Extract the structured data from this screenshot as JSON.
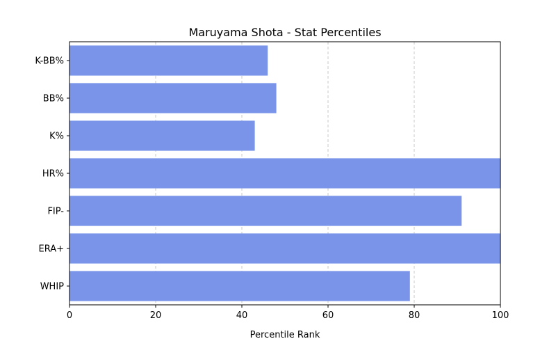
{
  "chart_data": {
    "type": "bar",
    "orientation": "horizontal",
    "title": "Maruyama Shota - Stat Percentiles",
    "xlabel": "Percentile Rank",
    "ylabel": "",
    "xlim": [
      0,
      100
    ],
    "xticks": [
      0,
      20,
      40,
      60,
      80,
      100
    ],
    "categories": [
      "K-BB%",
      "BB%",
      "K%",
      "HR%",
      "FIP-",
      "ERA+",
      "WHIP"
    ],
    "values": [
      46,
      48,
      43,
      100,
      91,
      100,
      79
    ],
    "bar_color": "#7994e9",
    "grid": "x-dashed"
  }
}
